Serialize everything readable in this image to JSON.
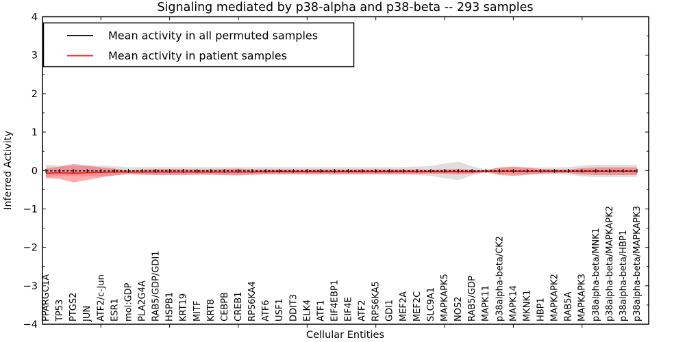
{
  "title": "Signaling mediated by p38-alpha and p38-beta -- 293 samples",
  "axes": {
    "xlabel": "Cellular Entities",
    "ylabel": "Inferred Activity"
  },
  "colors": {
    "permuted_line": "#000000",
    "patient_line": "#ff0000",
    "permuted_band": "rgba(0,0,0,0.13)",
    "patient_band": "rgba(255,0,0,0.33)",
    "axis": "#000000",
    "background": "#ffffff"
  },
  "chart_data": {
    "type": "line",
    "title": "Signaling mediated by p38-alpha and p38-beta -- 293 samples",
    "xlabel": "Cellular Entities",
    "ylabel": "Inferred Activity",
    "ylim": [
      -4,
      4
    ],
    "yticks": [
      4,
      3,
      2,
      1,
      0,
      -1,
      -2,
      -3,
      -4
    ],
    "yticklabels": [
      "4",
      "3",
      "2",
      "1",
      "0",
      "−1",
      "−2",
      "−3",
      "−4"
    ],
    "y_minor_tick_step": 0.5,
    "x_major_tick_every": 5,
    "grid": false,
    "legend_position": "upper left",
    "categories": [
      "PPARGC1A",
      "TP53",
      "PTGS2",
      "JUN",
      "ATF2/c-Jun",
      "ESR1",
      "mol:GDP",
      "PLA2G4A",
      "RAB5/GDP/GDI1",
      "HSPB1",
      "KRT19",
      "MITF",
      "KRT8",
      "CEBPB",
      "CREB1",
      "RPS6KA4",
      "ATF6",
      "USF1",
      "DDIT3",
      "ELK4",
      "ATF1",
      "EIF4EBP1",
      "EIF4E",
      "ATF2",
      "RPS6KA5",
      "GDI1",
      "MEF2A",
      "MEF2C",
      "SLC9A1",
      "MAPKAPK5",
      "NOS2",
      "RAB5/GDP",
      "MAPK11",
      "p38alpha-beta/CK2",
      "MAPK14",
      "MKNK1",
      "HBP1",
      "MAPKAPK2",
      "RAB5A",
      "MAPKAPK3",
      "p38alpha-beta/MNK1",
      "p38alpha-beta/MAPKAPK2",
      "p38alpha-beta/HBP1",
      "p38alpha-beta/MAPKAPK3"
    ],
    "series": [
      {
        "name": "Mean activity in all permuted samples",
        "color": "#000000",
        "band_fill": "rgba(0,0,0,0.13)",
        "values": [
          -0.01,
          -0.01,
          -0.01,
          -0.01,
          -0.01,
          -0.01,
          -0.01,
          -0.01,
          -0.01,
          -0.01,
          -0.01,
          -0.01,
          -0.01,
          -0.01,
          -0.01,
          -0.01,
          -0.01,
          -0.01,
          -0.01,
          -0.01,
          -0.01,
          -0.01,
          -0.01,
          -0.01,
          -0.01,
          -0.01,
          -0.01,
          -0.01,
          -0.01,
          -0.01,
          -0.01,
          -0.01,
          -0.01,
          -0.01,
          -0.01,
          -0.01,
          -0.01,
          -0.01,
          -0.01,
          -0.01,
          -0.01,
          -0.01,
          -0.01,
          -0.01
        ],
        "std": [
          0.16,
          0.14,
          0.13,
          0.13,
          0.14,
          0.12,
          0.1,
          0.1,
          0.1,
          0.1,
          0.1,
          0.1,
          0.1,
          0.1,
          0.1,
          0.1,
          0.1,
          0.1,
          0.1,
          0.1,
          0.1,
          0.1,
          0.1,
          0.1,
          0.1,
          0.1,
          0.1,
          0.11,
          0.13,
          0.19,
          0.24,
          0.12,
          0.03,
          0.08,
          0.1,
          0.1,
          0.09,
          0.09,
          0.1,
          0.14,
          0.16,
          0.16,
          0.16,
          0.16
        ]
      },
      {
        "name": "Mean activity in patient samples",
        "color": "#ff0000",
        "band_fill": "rgba(255,0,0,0.33)",
        "values": [
          -0.07,
          -0.06,
          -0.07,
          -0.06,
          -0.05,
          -0.04,
          -0.04,
          -0.04,
          -0.04,
          -0.04,
          -0.04,
          -0.04,
          -0.04,
          -0.04,
          -0.04,
          -0.04,
          -0.03,
          -0.03,
          -0.03,
          -0.03,
          -0.03,
          -0.03,
          -0.03,
          -0.03,
          -0.03,
          -0.03,
          -0.03,
          -0.03,
          -0.03,
          -0.03,
          -0.03,
          -0.03,
          -0.02,
          -0.02,
          -0.02,
          -0.02,
          -0.02,
          -0.02,
          -0.02,
          -0.02,
          -0.02,
          -0.02,
          -0.02,
          -0.02
        ],
        "std": [
          0.13,
          0.16,
          0.24,
          0.19,
          0.13,
          0.09,
          0.04,
          0.07,
          0.08,
          0.08,
          0.08,
          0.07,
          0.07,
          0.08,
          0.09,
          0.07,
          0.06,
          0.06,
          0.06,
          0.06,
          0.06,
          0.06,
          0.06,
          0.06,
          0.06,
          0.06,
          0.06,
          0.06,
          0.05,
          0.06,
          0.07,
          0.05,
          0.03,
          0.1,
          0.12,
          0.09,
          0.06,
          0.05,
          0.05,
          0.08,
          0.1,
          0.1,
          0.1,
          0.1
        ]
      }
    ]
  }
}
